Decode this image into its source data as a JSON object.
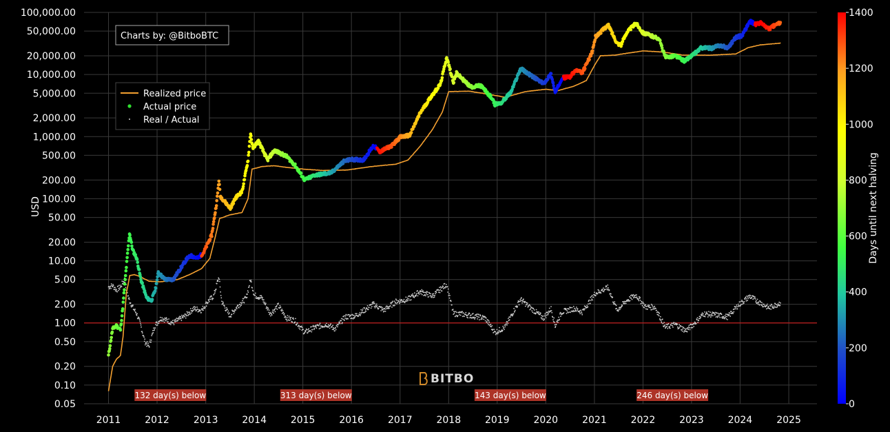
{
  "chart_data": {
    "type": "scatter",
    "ylabel": "USD",
    "yscale": "log",
    "ylim": [
      0.05,
      100000
    ],
    "xlim": [
      "2010-07-01",
      "2025-08-01"
    ],
    "y_ticks": [
      "100,000.00",
      "50,000.00",
      "20,000.00",
      "10,000.00",
      "5,000.00",
      "2,000.00",
      "1,000.00",
      "500.00",
      "200.00",
      "100.00",
      "50.00",
      "20.00",
      "10.00",
      "5.00",
      "2.00",
      "1.00",
      "0.50",
      "0.20",
      "0.10",
      "0.05"
    ],
    "x_ticks": [
      "2011",
      "2012",
      "2013",
      "2014",
      "2015",
      "2016",
      "2017",
      "2018",
      "2019",
      "2020",
      "2021",
      "2022",
      "2023",
      "2024",
      "2025"
    ],
    "grid": true,
    "legend_position": "top-left",
    "credit": "Charts by: @BitboBTC",
    "watermark": "BITBO",
    "reference_line": {
      "y": 1.0,
      "color": "#b01e1e"
    },
    "colorbar": {
      "title": "Days until next halving",
      "min": 0,
      "max": 1400,
      "ticks": [
        "1400",
        "1200",
        "1000",
        "800",
        "600",
        "400",
        "200",
        "0"
      ],
      "colors": [
        "#0000ff",
        "#2050c8",
        "#20c8a0",
        "#40ff40",
        "#d0ff30",
        "#ffff00",
        "#ffa020",
        "#ff0000"
      ]
    },
    "halving_dates": [
      "2012-11-28",
      "2016-07-09",
      "2020-05-11",
      "2024-04-20"
    ],
    "below_labels": [
      {
        "date": "2012-04-10",
        "text": "132 day(s) below"
      },
      {
        "date": "2015-04-10",
        "text": "313 day(s) below"
      },
      {
        "date": "2019-04-10",
        "text": "143 day(s) below"
      },
      {
        "date": "2022-08-10",
        "text": "246 day(s) below"
      }
    ],
    "series": [
      {
        "name": "Realized price",
        "color": "#f4a030",
        "points": [
          [
            "2011-01-01",
            0.08
          ],
          [
            "2011-02-01",
            0.2
          ],
          [
            "2011-03-01",
            0.26
          ],
          [
            "2011-04-01",
            0.3
          ],
          [
            "2011-04-20",
            0.6
          ],
          [
            "2011-05-15",
            3
          ],
          [
            "2011-06-10",
            5.8
          ],
          [
            "2011-07-15",
            6
          ],
          [
            "2011-09-01",
            5.5
          ],
          [
            "2011-11-01",
            4.7
          ],
          [
            "2012-02-01",
            4.6
          ],
          [
            "2012-06-01",
            5
          ],
          [
            "2012-09-01",
            6
          ],
          [
            "2012-12-01",
            7.5
          ],
          [
            "2013-02-01",
            11
          ],
          [
            "2013-03-15",
            25
          ],
          [
            "2013-04-15",
            48
          ],
          [
            "2013-07-01",
            55
          ],
          [
            "2013-10-01",
            60
          ],
          [
            "2013-11-15",
            100
          ],
          [
            "2013-12-15",
            300
          ],
          [
            "2014-03-01",
            330
          ],
          [
            "2014-06-01",
            340
          ],
          [
            "2014-09-01",
            320
          ],
          [
            "2015-01-01",
            300
          ],
          [
            "2015-06-01",
            285
          ],
          [
            "2015-12-01",
            290
          ],
          [
            "2016-06-01",
            330
          ],
          [
            "2016-12-01",
            360
          ],
          [
            "2017-03-01",
            420
          ],
          [
            "2017-06-01",
            700
          ],
          [
            "2017-09-01",
            1300
          ],
          [
            "2017-11-15",
            2500
          ],
          [
            "2018-01-01",
            5300
          ],
          [
            "2018-06-01",
            5400
          ],
          [
            "2018-11-01",
            4800
          ],
          [
            "2019-03-01",
            4300
          ],
          [
            "2019-08-01",
            5300
          ],
          [
            "2020-01-01",
            5800
          ],
          [
            "2020-04-01",
            5500
          ],
          [
            "2020-08-01",
            6500
          ],
          [
            "2020-11-01",
            8000
          ],
          [
            "2021-01-01",
            14000
          ],
          [
            "2021-02-15",
            20000
          ],
          [
            "2021-06-01",
            20500
          ],
          [
            "2022-01-01",
            24000
          ],
          [
            "2022-06-01",
            23000
          ],
          [
            "2022-11-01",
            20500
          ],
          [
            "2023-06-01",
            20500
          ],
          [
            "2023-12-01",
            21500
          ],
          [
            "2024-03-01",
            27000
          ],
          [
            "2024-06-01",
            30000
          ],
          [
            "2024-11-01",
            32000
          ]
        ]
      },
      {
        "name": "Actual price",
        "color": "#30e030",
        "points": [
          [
            "2011-01-01",
            0.3
          ],
          [
            "2011-02-01",
            0.8
          ],
          [
            "2011-03-01",
            0.9
          ],
          [
            "2011-04-01",
            0.78
          ],
          [
            "2011-04-15",
            1.5
          ],
          [
            "2011-05-15",
            8
          ],
          [
            "2011-06-08",
            28
          ],
          [
            "2011-07-01",
            15
          ],
          [
            "2011-08-01",
            11
          ],
          [
            "2011-09-01",
            5
          ],
          [
            "2011-10-15",
            2.5
          ],
          [
            "2011-11-20",
            2.3
          ],
          [
            "2011-12-20",
            3.5
          ],
          [
            "2012-01-10",
            6.5
          ],
          [
            "2012-03-01",
            5
          ],
          [
            "2012-05-01",
            5
          ],
          [
            "2012-08-15",
            11
          ],
          [
            "2012-09-15",
            12
          ],
          [
            "2012-11-01",
            11
          ],
          [
            "2012-12-15",
            13.5
          ],
          [
            "2013-02-15",
            26
          ],
          [
            "2013-03-25",
            90
          ],
          [
            "2013-04-10",
            200
          ],
          [
            "2013-04-20",
            110
          ],
          [
            "2013-07-05",
            70
          ],
          [
            "2013-08-15",
            105
          ],
          [
            "2013-10-01",
            130
          ],
          [
            "2013-11-15",
            420
          ],
          [
            "2013-12-04",
            1150
          ],
          [
            "2013-12-20",
            650
          ],
          [
            "2014-02-01",
            850
          ],
          [
            "2014-04-10",
            420
          ],
          [
            "2014-06-01",
            600
          ],
          [
            "2014-09-01",
            480
          ],
          [
            "2014-11-01",
            350
          ],
          [
            "2015-01-15",
            200
          ],
          [
            "2015-04-01",
            240
          ],
          [
            "2015-08-01",
            260
          ],
          [
            "2015-11-05",
            400
          ],
          [
            "2016-01-01",
            430
          ],
          [
            "2016-04-01",
            420
          ],
          [
            "2016-06-15",
            720
          ],
          [
            "2016-08-01",
            570
          ],
          [
            "2016-11-01",
            720
          ],
          [
            "2017-01-01",
            980
          ],
          [
            "2017-03-15",
            1050
          ],
          [
            "2017-06-01",
            2400
          ],
          [
            "2017-08-15",
            4200
          ],
          [
            "2017-11-01",
            7000
          ],
          [
            "2017-12-17",
            19000
          ],
          [
            "2018-02-06",
            7500
          ],
          [
            "2018-03-01",
            10500
          ],
          [
            "2018-06-15",
            6300
          ],
          [
            "2018-09-01",
            6600
          ],
          [
            "2018-11-20",
            4200
          ],
          [
            "2018-12-15",
            3300
          ],
          [
            "2019-02-01",
            3500
          ],
          [
            "2019-04-15",
            5200
          ],
          [
            "2019-06-26",
            12500
          ],
          [
            "2019-09-01",
            10000
          ],
          [
            "2019-12-15",
            7100
          ],
          [
            "2020-02-10",
            10200
          ],
          [
            "2020-03-12",
            5000
          ],
          [
            "2020-05-01",
            8800
          ],
          [
            "2020-07-01",
            9200
          ],
          [
            "2020-08-15",
            11800
          ],
          [
            "2020-10-01",
            10600
          ],
          [
            "2020-12-15",
            23000
          ],
          [
            "2021-01-08",
            40000
          ],
          [
            "2021-04-14",
            63000
          ],
          [
            "2021-06-20",
            32000
          ],
          [
            "2021-07-20",
            30000
          ],
          [
            "2021-09-01",
            48000
          ],
          [
            "2021-11-10",
            67000
          ],
          [
            "2022-01-01",
            47000
          ],
          [
            "2022-03-01",
            42000
          ],
          [
            "2022-05-01",
            38000
          ],
          [
            "2022-06-18",
            19000
          ],
          [
            "2022-09-01",
            20000
          ],
          [
            "2022-11-10",
            16500
          ],
          [
            "2023-01-15",
            21000
          ],
          [
            "2023-03-15",
            27000
          ],
          [
            "2023-06-01",
            26500
          ],
          [
            "2023-08-01",
            29500
          ],
          [
            "2023-10-01",
            27000
          ],
          [
            "2023-12-01",
            40000
          ],
          [
            "2024-01-15",
            42000
          ],
          [
            "2024-03-14",
            72000
          ],
          [
            "2024-04-25",
            64000
          ],
          [
            "2024-06-01",
            68000
          ],
          [
            "2024-08-05",
            54000
          ],
          [
            "2024-09-01",
            59000
          ],
          [
            "2024-10-30",
            69000
          ]
        ]
      },
      {
        "name": "Real / Actual",
        "color": "#cccccc",
        "points": [
          [
            "2011-01-01",
            3.8
          ],
          [
            "2011-02-01",
            4
          ],
          [
            "2011-03-01",
            3.4
          ],
          [
            "2011-04-01",
            3.8
          ],
          [
            "2011-05-01",
            5
          ],
          [
            "2011-06-01",
            2.5
          ],
          [
            "2011-07-01",
            1.8
          ],
          [
            "2011-08-01",
            1.4
          ],
          [
            "2011-09-01",
            0.9
          ],
          [
            "2011-10-01",
            0.5
          ],
          [
            "2011-11-01",
            0.42
          ],
          [
            "2011-12-15",
            0.9
          ],
          [
            "2012-02-01",
            1.2
          ],
          [
            "2012-05-01",
            1
          ],
          [
            "2012-08-01",
            1.3
          ],
          [
            "2012-10-01",
            1.7
          ],
          [
            "2012-12-01",
            1.6
          ],
          [
            "2013-01-15",
            2.2
          ],
          [
            "2013-03-01",
            2.7
          ],
          [
            "2013-04-10",
            5.5
          ],
          [
            "2013-05-01",
            2.2
          ],
          [
            "2013-07-01",
            1.3
          ],
          [
            "2013-09-01",
            1.9
          ],
          [
            "2013-11-01",
            2.5
          ],
          [
            "2013-12-04",
            5
          ],
          [
            "2014-01-01",
            2.8
          ],
          [
            "2014-03-01",
            2.5
          ],
          [
            "2014-05-01",
            1.4
          ],
          [
            "2014-07-01",
            1.9
          ],
          [
            "2014-09-01",
            1.2
          ],
          [
            "2014-11-01",
            1.1
          ],
          [
            "2015-01-15",
            0.7
          ],
          [
            "2015-04-01",
            0.85
          ],
          [
            "2015-07-01",
            0.95
          ],
          [
            "2015-09-01",
            0.8
          ],
          [
            "2015-11-15",
            1.25
          ],
          [
            "2016-02-01",
            1.3
          ],
          [
            "2016-06-15",
            2
          ],
          [
            "2016-09-01",
            1.6
          ],
          [
            "2016-12-01",
            2.2
          ],
          [
            "2017-03-01",
            2.4
          ],
          [
            "2017-06-01",
            3.2
          ],
          [
            "2017-09-01",
            2.7
          ],
          [
            "2017-12-17",
            4.2
          ],
          [
            "2018-02-06",
            1.4
          ],
          [
            "2018-04-01",
            1.4
          ],
          [
            "2018-07-01",
            1.3
          ],
          [
            "2018-10-01",
            1.2
          ],
          [
            "2018-11-20",
            0.85
          ],
          [
            "2018-12-15",
            0.7
          ],
          [
            "2019-03-01",
            0.85
          ],
          [
            "2019-05-01",
            1.5
          ],
          [
            "2019-06-26",
            2.4
          ],
          [
            "2019-09-01",
            1.8
          ],
          [
            "2019-12-15",
            1.2
          ],
          [
            "2020-02-10",
            1.7
          ],
          [
            "2020-03-12",
            0.9
          ],
          [
            "2020-05-01",
            1.5
          ],
          [
            "2020-08-01",
            1.7
          ],
          [
            "2020-10-01",
            1.5
          ],
          [
            "2021-01-08",
            3
          ],
          [
            "2021-04-14",
            3.7
          ],
          [
            "2021-06-20",
            1.6
          ],
          [
            "2021-09-01",
            2.3
          ],
          [
            "2021-11-10",
            2.8
          ],
          [
            "2022-01-20",
            1.8
          ],
          [
            "2022-04-01",
            1.8
          ],
          [
            "2022-06-18",
            0.85
          ],
          [
            "2022-09-01",
            0.95
          ],
          [
            "2022-11-20",
            0.75
          ],
          [
            "2023-01-15",
            0.95
          ],
          [
            "2023-04-01",
            1.4
          ],
          [
            "2023-07-01",
            1.35
          ],
          [
            "2023-10-01",
            1.25
          ],
          [
            "2023-12-15",
            1.9
          ],
          [
            "2024-03-14",
            2.7
          ],
          [
            "2024-05-01",
            2.3
          ],
          [
            "2024-08-05",
            1.75
          ],
          [
            "2024-10-30",
            2.1
          ]
        ]
      }
    ]
  }
}
